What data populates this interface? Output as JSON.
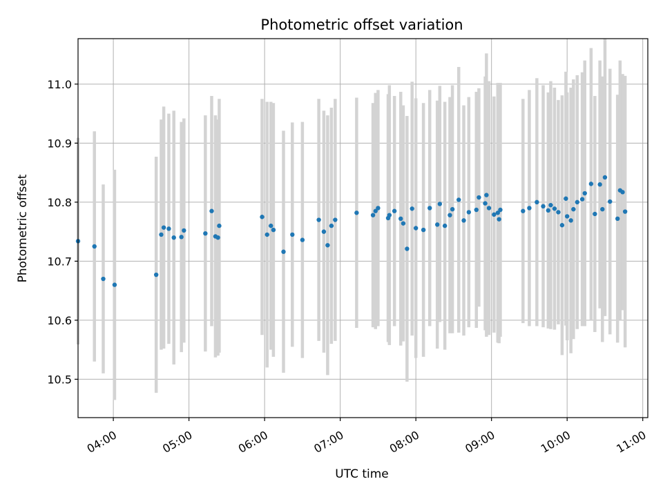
{
  "chart_data": {
    "type": "scatter",
    "title": "Photometric offset variation",
    "xlabel": "UTC time",
    "ylabel": "Photometric offset",
    "xlim": [
      "03:32",
      "11:04"
    ],
    "ylim": [
      10.435,
      11.077
    ],
    "grid": true,
    "x_ticks": [
      "04:00",
      "05:00",
      "06:00",
      "07:00",
      "08:00",
      "09:00",
      "10:00",
      "11:00"
    ],
    "y_ticks": [
      "10.5",
      "10.6",
      "10.7",
      "10.8",
      "10.9",
      "11.0"
    ],
    "colors": {
      "point": "#1f77b4",
      "errorbar": "#d3d3d3"
    },
    "series": [
      {
        "error_bars": true,
        "x": [
          "03:32",
          "03:45",
          "03:52",
          "04:01",
          "04:34",
          "04:38",
          "04:40",
          "04:44",
          "04:48",
          "04:54",
          "04:56",
          "05:13",
          "05:18",
          "05:21",
          "05:23",
          "05:24",
          "05:58",
          "06:02",
          "06:05",
          "06:07",
          "06:15",
          "06:22",
          "06:30",
          "06:43",
          "06:47",
          "06:50",
          "06:53",
          "06:56",
          "07:13",
          "07:26",
          "07:28",
          "07:30",
          "07:38",
          "07:39",
          "07:43",
          "07:48",
          "07:50",
          "07:53",
          "07:57",
          "08:00",
          "08:06",
          "08:11",
          "08:17",
          "08:19",
          "08:23",
          "08:27",
          "08:29",
          "08:34",
          "08:38",
          "08:42",
          "08:48",
          "08:50",
          "08:55",
          "08:56",
          "08:58",
          "09:02",
          "09:05",
          "09:06",
          "09:07",
          "09:25",
          "09:30",
          "09:36",
          "09:41",
          "09:45",
          "09:47",
          "09:50",
          "09:53",
          "09:56",
          "09:59",
          "10:00",
          "10:03",
          "10:05",
          "10:08",
          "10:12",
          "10:14",
          "10:19",
          "10:22",
          "10:26",
          "10:28",
          "10:30",
          "10:34",
          "10:40",
          "10:42",
          "10:44",
          "10:46"
        ],
        "y": [
          10.734,
          10.725,
          10.67,
          10.66,
          10.677,
          10.745,
          10.757,
          10.755,
          10.74,
          10.741,
          10.752,
          10.747,
          10.785,
          10.742,
          10.74,
          10.76,
          10.775,
          10.745,
          10.76,
          10.753,
          10.716,
          10.745,
          10.736,
          10.77,
          10.75,
          10.727,
          10.76,
          10.77,
          10.782,
          10.778,
          10.785,
          10.79,
          10.773,
          10.778,
          10.785,
          10.772,
          10.764,
          10.721,
          10.789,
          10.756,
          10.753,
          10.79,
          10.762,
          10.797,
          10.76,
          10.778,
          10.788,
          10.804,
          10.769,
          10.783,
          10.787,
          10.808,
          10.798,
          10.812,
          10.79,
          10.779,
          10.782,
          10.771,
          10.787,
          10.785,
          10.79,
          10.8,
          10.793,
          10.786,
          10.795,
          10.789,
          10.783,
          10.761,
          10.806,
          10.776,
          10.769,
          10.788,
          10.8,
          10.805,
          10.815,
          10.831,
          10.78,
          10.83,
          10.788,
          10.842,
          10.801,
          10.772,
          10.82,
          10.817,
          10.784
        ],
        "err": [
          0.175,
          0.195,
          0.16,
          0.195,
          0.2,
          0.195,
          0.205,
          0.195,
          0.215,
          0.195,
          0.19,
          0.2,
          0.195,
          0.205,
          0.2,
          0.215,
          0.2,
          0.225,
          0.21,
          0.215,
          0.205,
          0.19,
          0.2,
          0.205,
          0.205,
          0.22,
          0.2,
          0.205,
          0.195,
          0.19,
          0.2,
          0.2,
          0.21,
          0.22,
          0.195,
          0.215,
          0.2,
          0.225,
          0.215,
          0.22,
          0.215,
          0.2,
          0.21,
          0.2,
          0.21,
          0.2,
          0.21,
          0.225,
          0.195,
          0.195,
          0.2,
          0.185,
          0.215,
          0.24,
          0.215,
          0.2,
          0.22,
          0.21,
          0.215,
          0.19,
          0.2,
          0.21,
          0.205,
          0.2,
          0.21,
          0.205,
          0.19,
          0.22,
          0.215,
          0.21,
          0.225,
          0.22,
          0.215,
          0.215,
          0.225,
          0.23,
          0.2,
          0.21,
          0.225,
          0.235,
          0.225,
          0.21,
          0.22,
          0.2,
          0.23
        ]
      }
    ]
  }
}
